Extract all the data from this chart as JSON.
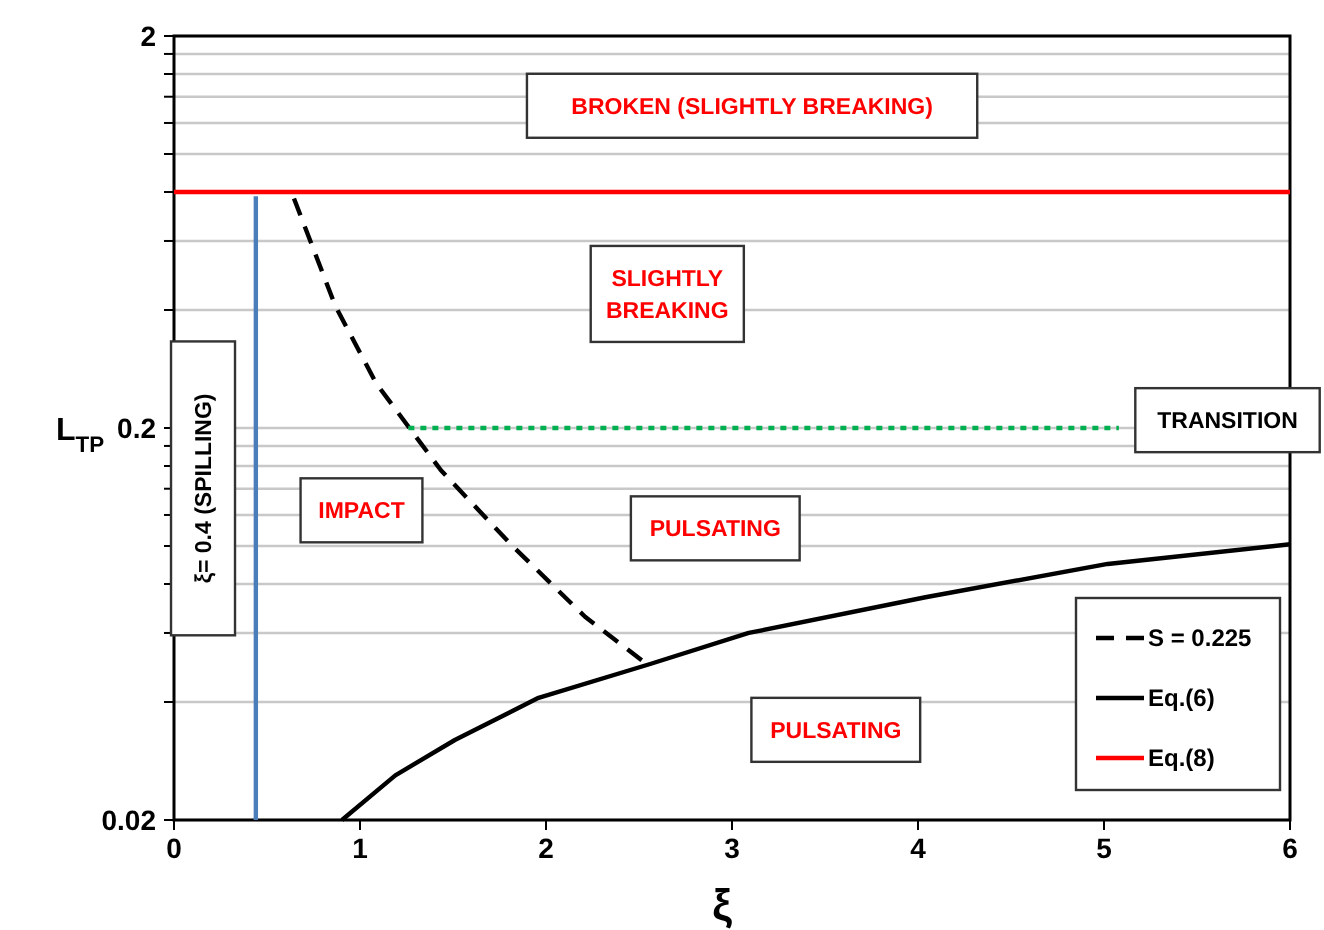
{
  "chart_data": {
    "type": "line",
    "xlabel": "ξ",
    "ylabel": "L$_{TP}$",
    "log": "y",
    "grid": "y",
    "legend": "bottom right",
    "xlim": [
      0,
      6
    ],
    "xticks": [
      0,
      1,
      2,
      3,
      4,
      5,
      6
    ],
    "ylim": [
      0.02,
      2
    ],
    "yticks": [
      0.02,
      {
        "value": 0.04,
        "label": null
      },
      {
        "value": 0.06,
        "label": null
      },
      {
        "value": 0.08,
        "label": null
      },
      {
        "value": 0.1,
        "label": null
      },
      {
        "value": 0.12,
        "label": null
      },
      {
        "value": 0.14,
        "label": null
      },
      {
        "value": 0.16,
        "label": null
      },
      {
        "value": 0.18,
        "label": null
      },
      0.2,
      {
        "value": 0.4,
        "label": null
      },
      {
        "value": 0.6,
        "label": null
      },
      {
        "value": 0.8,
        "label": null
      },
      {
        "value": 1.0,
        "label": null
      },
      {
        "value": 1.2,
        "label": null
      },
      {
        "value": 1.4,
        "label": null
      },
      {
        "value": 1.6,
        "label": null
      },
      {
        "value": 1.8,
        "label": null
      },
      2
    ],
    "series": [
      {
        "name": "S = 0.225",
        "color": "#000000",
        "line_style": "dashed",
        "x": [
          0.645,
          0.867,
          1.087,
          1.435,
          1.82,
          2.21,
          2.565
        ],
        "values": [
          0.77,
          0.41,
          0.26,
          0.156,
          0.1,
          0.066,
          0.049
        ]
      },
      {
        "name": "Eq.(6)",
        "color": "#000000",
        "line_style": "solid",
        "x": [
          0.903,
          1.19,
          1.51,
          1.96,
          2.56,
          3.09,
          4.04,
          5.02,
          6
        ],
        "values": [
          0.02,
          0.026,
          0.032,
          0.041,
          0.05,
          0.06,
          0.074,
          0.09,
          0.101
        ]
      },
      {
        "name": "Eq.(8)",
        "color": "#ff0000",
        "line_style": "solid",
        "x": [
          0,
          6
        ],
        "values": [
          0.8,
          0.8
        ]
      },
      {
        "color": "#00b050",
        "line_style": "dotted",
        "x": [
          1.26,
          5.08
        ],
        "values": [
          0.2,
          0.2
        ]
      },
      {
        "color": "#4a7ebb",
        "line_style": "solid",
        "x": [
          0.44,
          0.44
        ],
        "values": [
          0.02,
          0.78
        ]
      }
    ],
    "annotations": [
      "BROKEN  (SLIGHTLY BREAKING)",
      "SLIGHTLY\nBREAKING",
      "IMPACT",
      "PULSATING",
      "PULSATING",
      "TRANSITION",
      "ξ= 0.4 (SPILLING)"
    ]
  }
}
